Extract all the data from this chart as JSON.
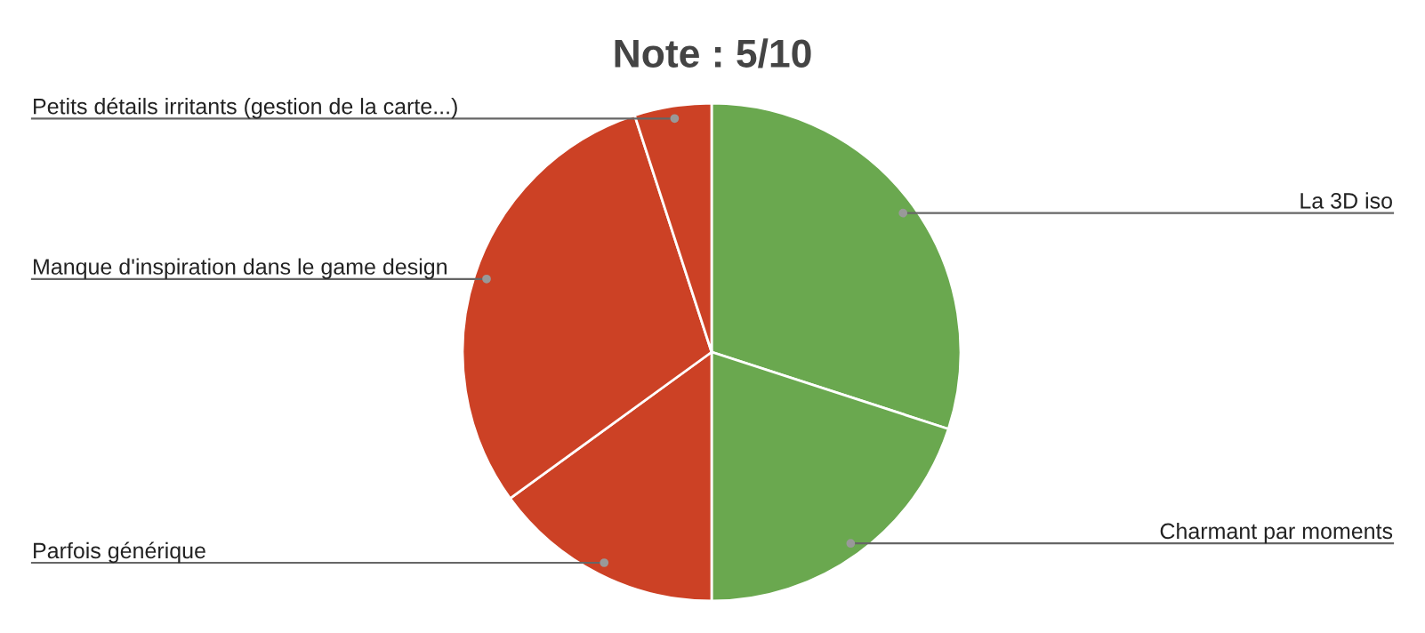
{
  "chart_data": {
    "type": "pie",
    "title": "Note : 5/10",
    "categories": [
      "La 3D iso",
      "Charmant par moments",
      "Parfois générique",
      "Manque d'inspiration dans le game design",
      "Petits détails irritants (gestion de la carte...)"
    ],
    "values": [
      30,
      20,
      15,
      30,
      5
    ],
    "colors": [
      "#6aa84f",
      "#6aa84f",
      "#cc4125",
      "#cc4125",
      "#cc4125"
    ]
  }
}
